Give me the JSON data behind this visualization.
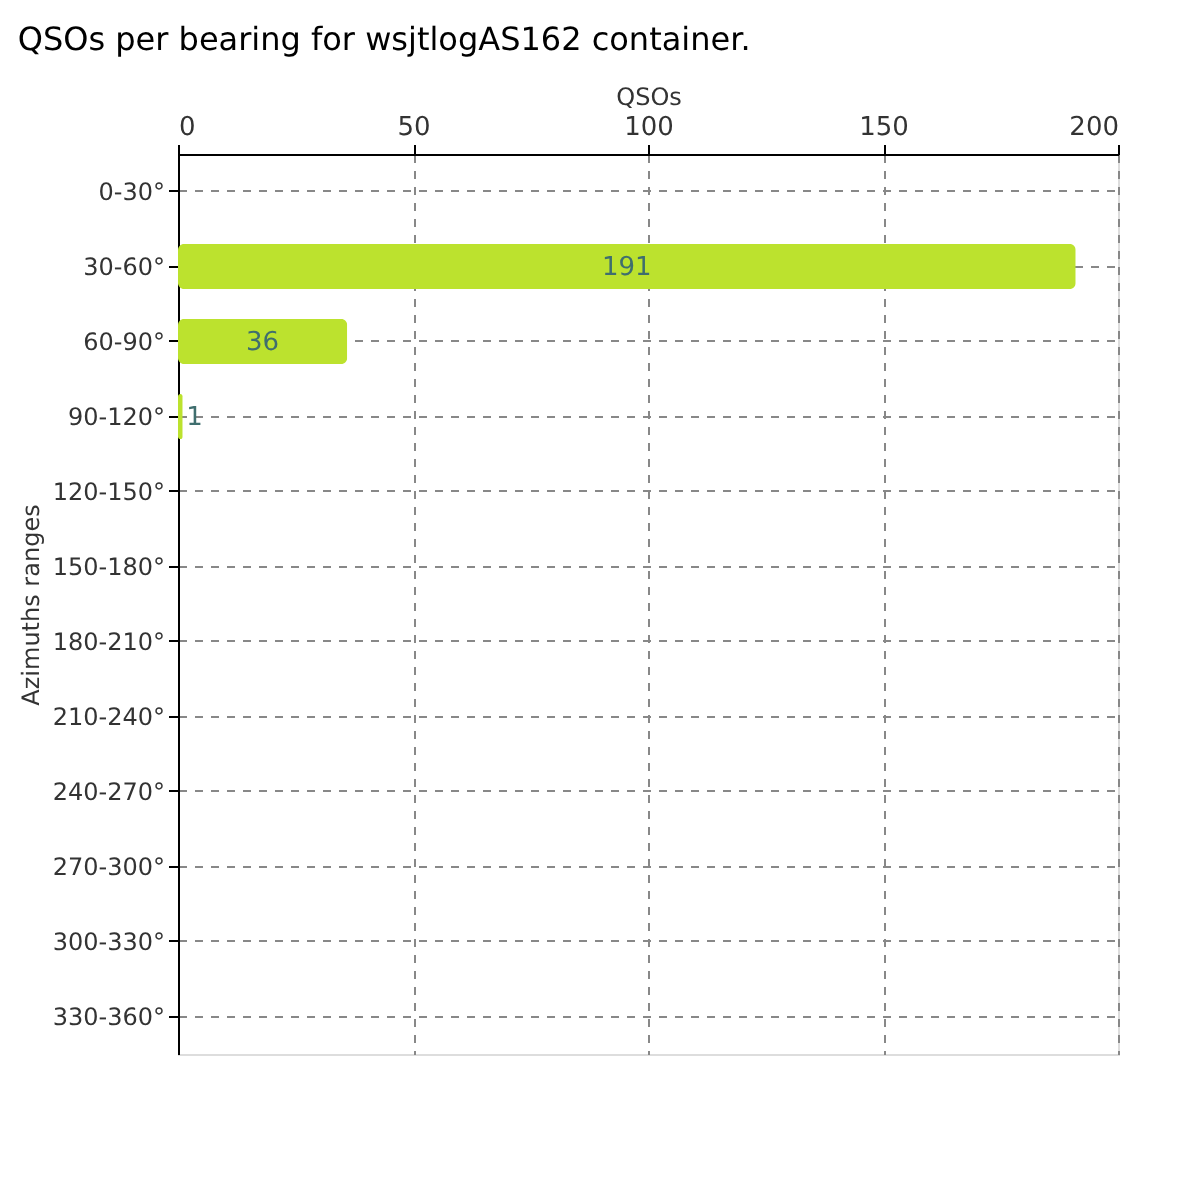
{
  "chart_data": {
    "type": "bar",
    "orientation": "horizontal",
    "title": "QSOs per bearing for wsjtlogAS162 container.",
    "xlabel": "QSOs",
    "ylabel": "Azimuths ranges",
    "categories": [
      "0-30°",
      "30-60°",
      "60-90°",
      "90-120°",
      "120-150°",
      "150-180°",
      "180-210°",
      "210-240°",
      "240-270°",
      "270-300°",
      "300-330°",
      "330-360°"
    ],
    "values": [
      0,
      191,
      36,
      1,
      0,
      0,
      0,
      0,
      0,
      0,
      0,
      0
    ],
    "value_labels": [
      null,
      "191",
      "36",
      "1",
      null,
      null,
      null,
      null,
      null,
      null,
      null,
      null
    ],
    "color": "#bce22e",
    "xlim": [
      0,
      200
    ],
    "xticks": [
      0,
      50,
      100,
      150,
      200
    ],
    "grid": true
  }
}
